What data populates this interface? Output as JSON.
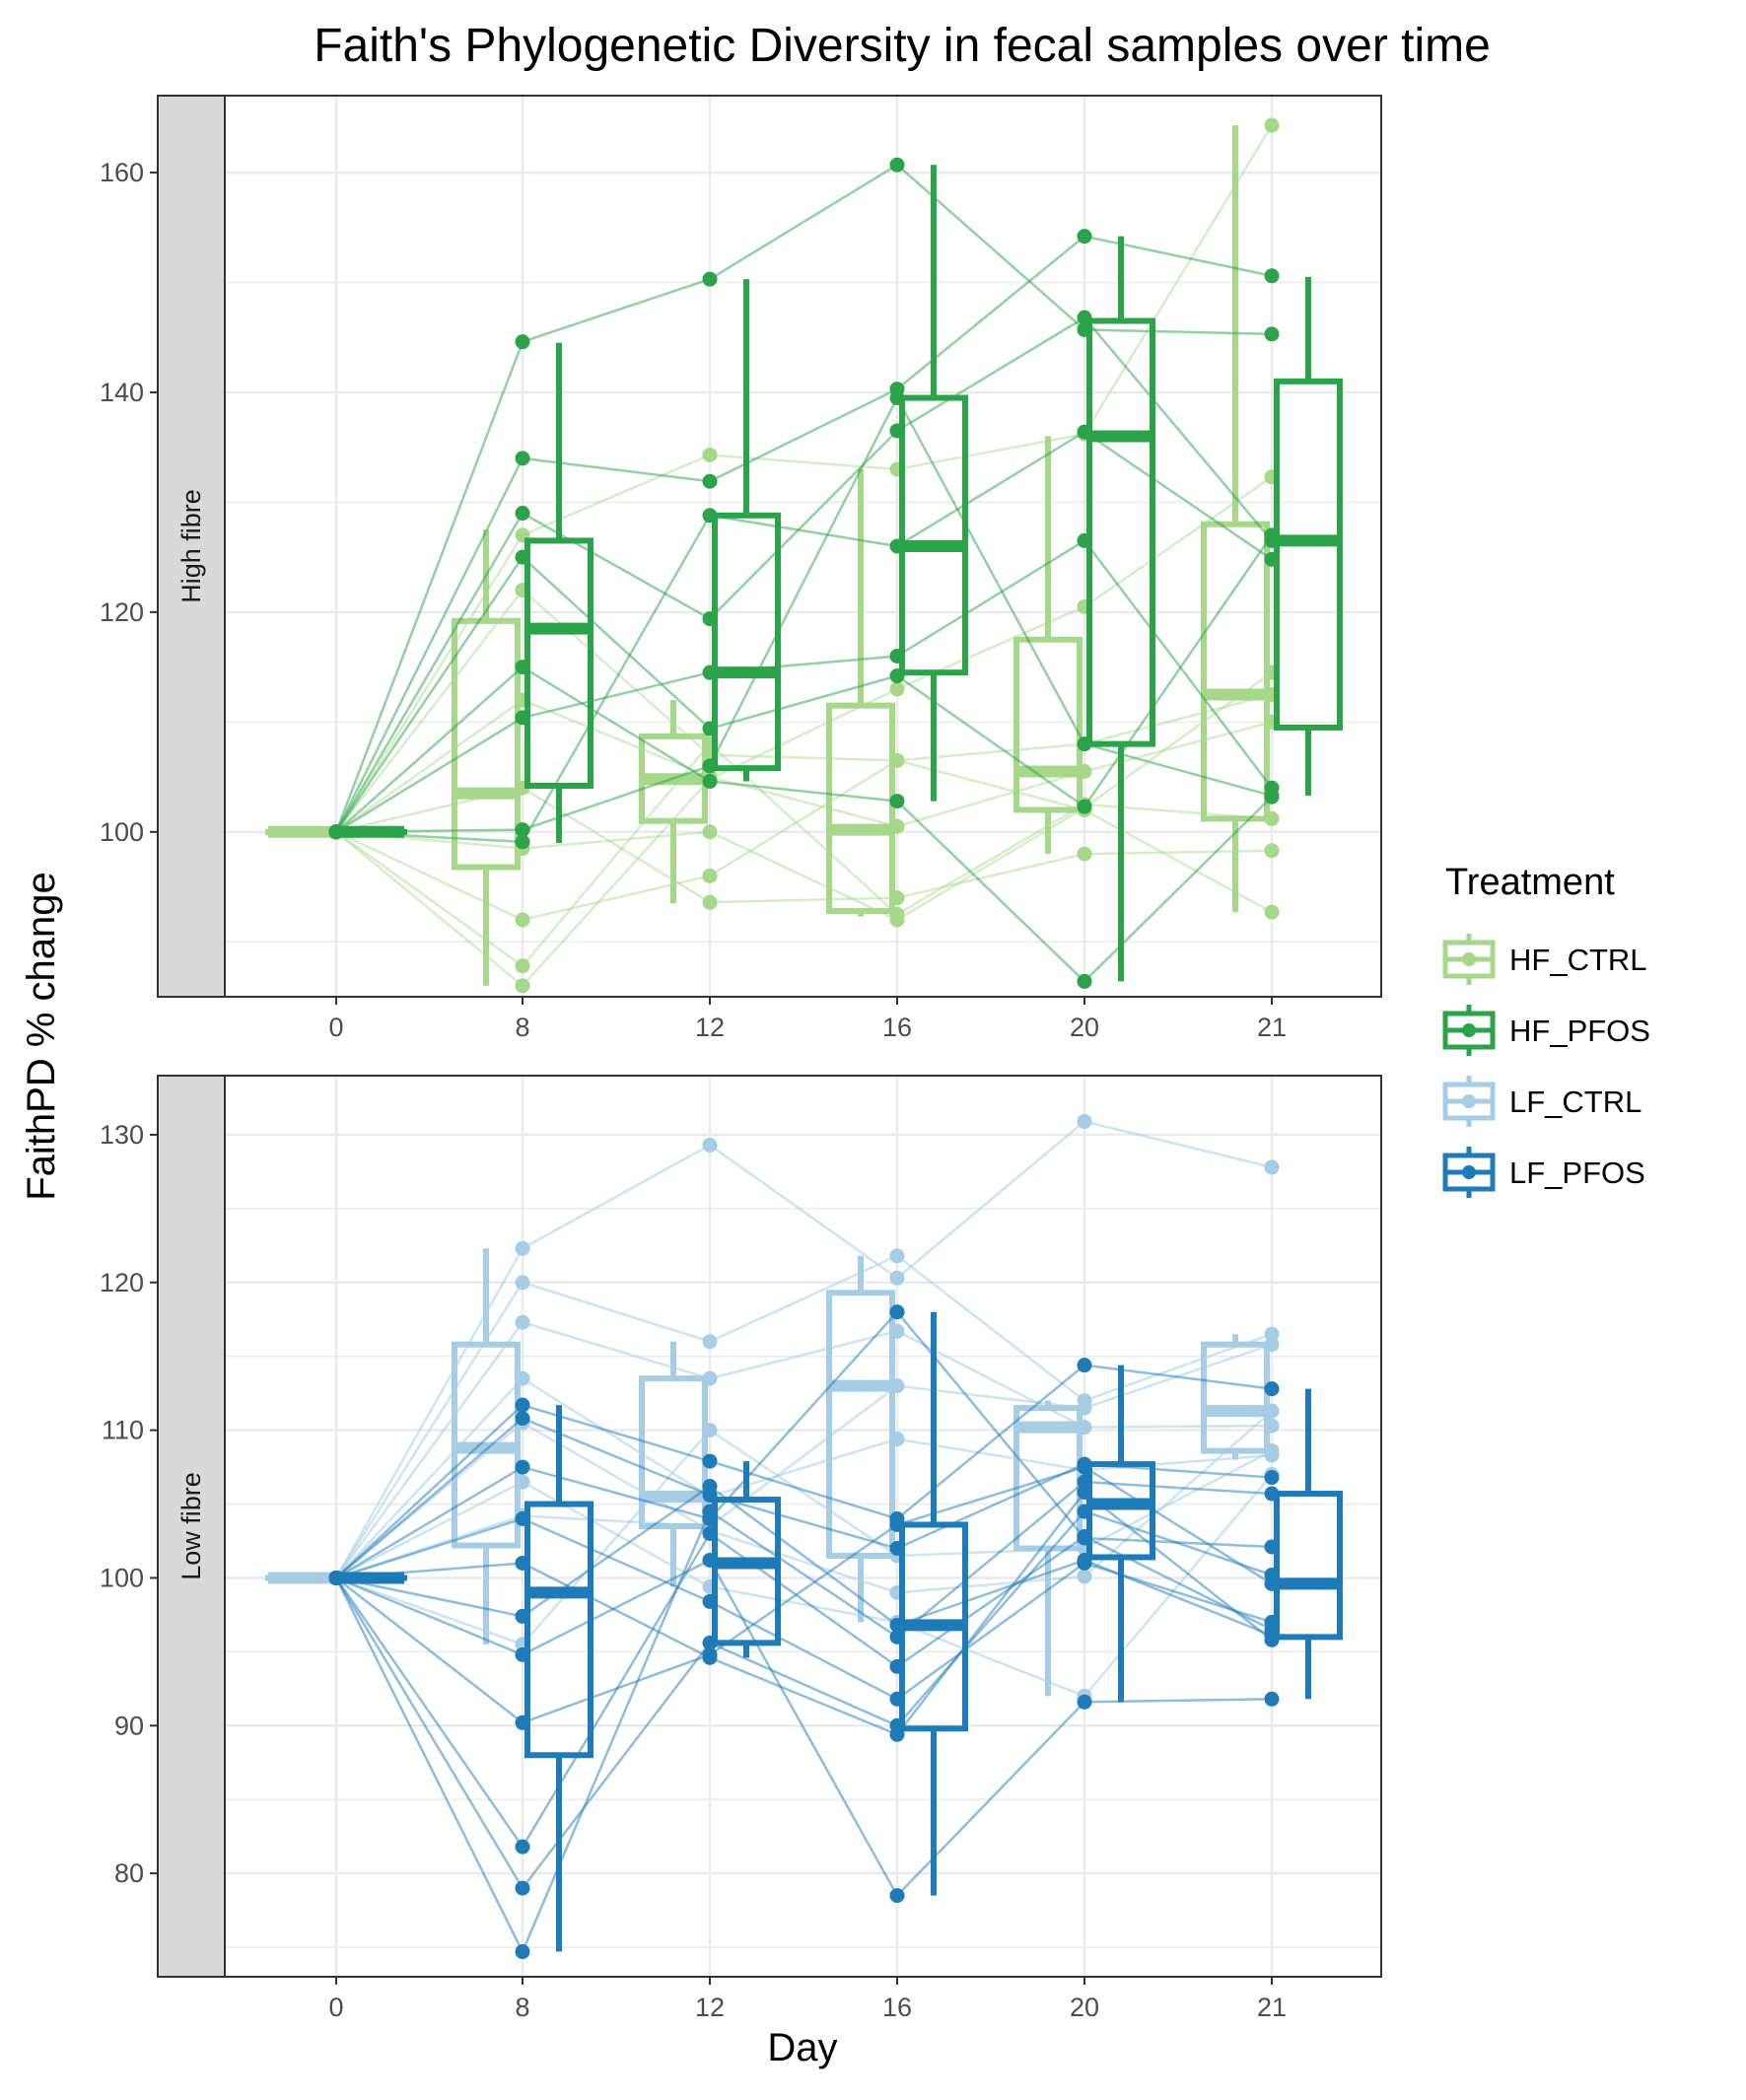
{
  "chart_data": {
    "type": "boxplot",
    "title": "Faith's Phylogenetic Diversity in fecal samples over time",
    "xlabel": "Day",
    "ylabel": "FaithPD % change",
    "x_categories": [
      "0",
      "8",
      "12",
      "16",
      "20",
      "21"
    ],
    "grid": true,
    "legend": {
      "title": "Treatment",
      "position": "right",
      "items": [
        {
          "name": "HF_CTRL",
          "color": "#a6d78a"
        },
        {
          "name": "HF_PFOS",
          "color": "#2ca24a"
        },
        {
          "name": "LF_CTRL",
          "color": "#a6cde3"
        },
        {
          "name": "LF_PFOS",
          "color": "#1f7bb8"
        }
      ]
    },
    "panels": [
      {
        "strip": "High fibre",
        "ylim": [
          85,
          167
        ],
        "yticks": [
          100,
          120,
          140,
          160
        ],
        "groups": [
          {
            "treatment": "HF_CTRL",
            "color": "#a6d78a",
            "alpha": 0.45,
            "boxes": [
              {
                "day": "0",
                "whisker_low": 100,
                "q1": 100,
                "median": 100,
                "q3": 100,
                "whisker_high": 100
              },
              {
                "day": "8",
                "whisker_low": 86,
                "q1": 96.8,
                "median": 103.5,
                "q3": 119.2,
                "whisker_high": 127.5
              },
              {
                "day": "12",
                "whisker_low": 93.5,
                "q1": 101,
                "median": 104.8,
                "q3": 108.7,
                "whisker_high": 112
              },
              {
                "day": "16",
                "whisker_low": 92.3,
                "q1": 92.8,
                "median": 100.2,
                "q3": 111.5,
                "whisker_high": 133
              },
              {
                "day": "20",
                "whisker_low": 98,
                "q1": 102,
                "median": 105.5,
                "q3": 117.5,
                "whisker_high": 136
              },
              {
                "day": "21",
                "whisker_low": 92.7,
                "q1": 101.2,
                "median": 112.5,
                "q3": 128,
                "whisker_high": 164.3
              }
            ],
            "subjects": [
              [
                100,
                127,
                134.3,
                133,
                136.2,
                164.3
              ],
              [
                100,
                122,
                107,
                106.5,
                102,
                92.7
              ],
              [
                100,
                112,
                105,
                100.5,
                105.5,
                110
              ],
              [
                100,
                104,
                93.6,
                94,
                98,
                98.3
              ],
              [
                100,
                98.5,
                100,
                92,
                102.2,
                114.5
              ],
              [
                100,
                92,
                96,
                106.5,
                108,
                112.5
              ],
              [
                100,
                86,
                104.8,
                113,
                120.5,
                132.3
              ],
              [
                100,
                87.8,
                108,
                92.5,
                102.5,
                101.2
              ]
            ]
          },
          {
            "treatment": "HF_PFOS",
            "color": "#2ca24a",
            "alpha": 0.5,
            "boxes": [
              {
                "day": "0",
                "whisker_low": 100,
                "q1": 100,
                "median": 100,
                "q3": 100,
                "whisker_high": 100
              },
              {
                "day": "8",
                "whisker_low": 99,
                "q1": 104.2,
                "median": 118.5,
                "q3": 126.5,
                "whisker_high": 144.5
              },
              {
                "day": "12",
                "whisker_low": 104.6,
                "q1": 105.8,
                "median": 114.5,
                "q3": 128.8,
                "whisker_high": 150.3
              },
              {
                "day": "16",
                "whisker_low": 102.8,
                "q1": 114.5,
                "median": 126,
                "q3": 139.5,
                "whisker_high": 160.7
              },
              {
                "day": "20",
                "whisker_low": 86.4,
                "q1": 108,
                "median": 136,
                "q3": 146.5,
                "whisker_high": 154.2
              },
              {
                "day": "21",
                "whisker_low": 103.3,
                "q1": 109.5,
                "median": 126.5,
                "q3": 141,
                "whisker_high": 150.5
              }
            ],
            "subjects": [
              [
                100,
                144.6,
                150.3,
                160.7,
                145.7,
                145.3
              ],
              [
                100,
                134,
                131.9,
                140.3,
                154.2,
                150.6
              ],
              [
                100,
                129,
                119.4,
                136.5,
                146.8,
                126.5
              ],
              [
                100,
                125,
                109.4,
                114.2,
                102.3,
                127
              ],
              [
                100,
                110.4,
                114.5,
                116,
                126.5,
                104
              ],
              [
                100,
                115,
                104.6,
                102.8,
                86.4,
                103.2
              ],
              [
                100,
                99.1,
                128.8,
                126,
                136.4,
                124.8
              ],
              [
                100,
                100.2,
                106,
                139.5,
                108,
                103.3
              ]
            ]
          }
        ]
      },
      {
        "strip": "Low fibre",
        "ylim": [
          73,
          134
        ],
        "yticks": [
          80,
          90,
          100,
          110,
          120,
          130
        ],
        "groups": [
          {
            "treatment": "LF_CTRL",
            "color": "#a6cde3",
            "alpha": 0.55,
            "boxes": [
              {
                "day": "0",
                "whisker_low": 100,
                "q1": 100,
                "median": 100,
                "q3": 100,
                "whisker_high": 100
              },
              {
                "day": "8",
                "whisker_low": 95.5,
                "q1": 102.2,
                "median": 108.8,
                "q3": 115.8,
                "whisker_high": 122.3
              },
              {
                "day": "12",
                "whisker_low": 99.4,
                "q1": 103.5,
                "median": 105.5,
                "q3": 113.5,
                "whisker_high": 116
              },
              {
                "day": "16",
                "whisker_low": 97,
                "q1": 101.5,
                "median": 113,
                "q3": 119.3,
                "whisker_high": 121.8
              },
              {
                "day": "20",
                "whisker_low": 92,
                "q1": 102,
                "median": 110.2,
                "q3": 111.5,
                "whisker_high": 112
              },
              {
                "day": "21",
                "whisker_low": 108,
                "q1": 108.6,
                "median": 111.3,
                "q3": 115.8,
                "whisker_high": 116.5
              }
            ],
            "subjects": [
              [
                100,
                122.3,
                129.3,
                120.3,
                130.9,
                127.8
              ],
              [
                100,
                120,
                116,
                121.8,
                112,
                116.5
              ],
              [
                100,
                117.3,
                113.5,
                116.7,
                110.2,
                110.3
              ],
              [
                100,
                113.5,
                105.5,
                109.4,
                107.3,
                108.3
              ],
              [
                100,
                110.5,
                103.2,
                99,
                100.1,
                111.3
              ],
              [
                100,
                106.5,
                99.4,
                97,
                92,
                107
              ],
              [
                100,
                104.2,
                103.5,
                113,
                111.5,
                115.8
              ],
              [
                100,
                95.5,
                110,
                101.5,
                102,
                108.6
              ]
            ]
          },
          {
            "treatment": "LF_PFOS",
            "color": "#1f7bb8",
            "alpha": 0.5,
            "boxes": [
              {
                "day": "0",
                "whisker_low": 100,
                "q1": 100,
                "median": 100,
                "q3": 100,
                "whisker_high": 100
              },
              {
                "day": "8",
                "whisker_low": 74.7,
                "q1": 88,
                "median": 99,
                "q3": 105,
                "whisker_high": 111.7
              },
              {
                "day": "12",
                "whisker_low": 94.6,
                "q1": 95.6,
                "median": 101,
                "q3": 105.3,
                "whisker_high": 107.9
              },
              {
                "day": "16",
                "whisker_low": 78.5,
                "q1": 89.8,
                "median": 96.8,
                "q3": 103.6,
                "whisker_high": 118
              },
              {
                "day": "20",
                "whisker_low": 91.6,
                "q1": 101.4,
                "median": 105,
                "q3": 107.7,
                "whisker_high": 114.4
              },
              {
                "day": "21",
                "whisker_low": 91.8,
                "q1": 96,
                "median": 99.6,
                "q3": 105.7,
                "whisker_high": 112.8
              }
            ],
            "subjects": [
              [
                100,
                111.7,
                107.9,
                104,
                114.4,
                112.8
              ],
              [
                100,
                110.8,
                105.6,
                102,
                107.7,
                106.8
              ],
              [
                100,
                107.5,
                104,
                118,
                102.7,
                102.1
              ],
              [
                100,
                104,
                98.4,
                91.8,
                101,
                97
              ],
              [
                100,
                101,
                94.6,
                89.4,
                105.8,
                95.8
              ],
              [
                100,
                97.4,
                106.2,
                96.8,
                101.2,
                96.1
              ],
              [
                100,
                94.8,
                101.2,
                78.5,
                91.6,
                91.8
              ],
              [
                100,
                90.2,
                94.8,
                103.6,
                107.5,
                99.6
              ],
              [
                100,
                81.8,
                103,
                94,
                102.8,
                96.5
              ],
              [
                100,
                79,
                95.6,
                90,
                104.5,
                100.2
              ],
              [
                100,
                74.7,
                104.5,
                96,
                106.5,
                105.7
              ]
            ]
          }
        ]
      }
    ]
  }
}
